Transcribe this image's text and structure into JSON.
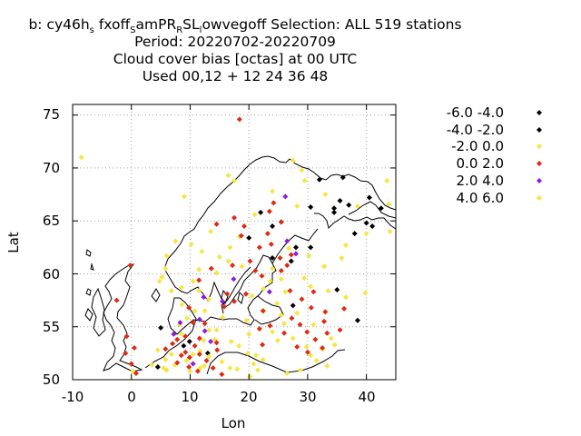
{
  "colors": {
    "black_class": "#000000",
    "yellow_class": "#f5e642",
    "red_class": "#e02a10",
    "purple_class": "#8a1ee0",
    "coastline": "#000000",
    "grid": "#a0a0a0"
  },
  "chart_data": {
    "type": "scatter",
    "title_lines": {
      "line1": {
        "prefix": "b: cy46h",
        "sub1": "s",
        "mid1": " fxoff",
        "sub2": "S",
        "mid2": "amPR",
        "sub3": "R",
        "mid3": "SL",
        "sub4": "l",
        "suffix": "owvegoff   Selection: ALL    519 stations"
      },
      "line2": "Period: 20220702-20220709",
      "line3": "Cloud cover bias [octas] at  00 UTC",
      "line4": "Used  00,12  + 12 24 36 48"
    },
    "xlabel": "Lon",
    "ylabel": "Lat",
    "xlim": [
      -10,
      45
    ],
    "ylim": [
      50,
      76
    ],
    "xticks": [
      "-10",
      "0",
      "10",
      "20",
      "30",
      "40"
    ],
    "yticks": [
      "50",
      "55",
      "60",
      "65",
      "70",
      "75"
    ],
    "grid": true,
    "legend_position": "right, outside",
    "legend": [
      {
        "label": "-6.0 -4.0",
        "color": "#000000"
      },
      {
        "label": "-4.0 -2.0",
        "color": "#000000"
      },
      {
        "label": "-2.0 0.0",
        "color": "#f5e642"
      },
      {
        "label": "0.0 2.0",
        "color": "#e02a10"
      },
      {
        "label": "2.0 4.0",
        "color": "#8a1ee0"
      },
      {
        "label": "4.0 6.0",
        "color": "#f5e642"
      }
    ],
    "series": [
      {
        "color": "#000000",
        "points": [
          [
            34.5,
            65.8
          ],
          [
            37,
            66.5
          ],
          [
            40,
            64.8
          ],
          [
            41,
            64.5
          ],
          [
            38,
            63.8
          ],
          [
            40.5,
            67.2
          ],
          [
            42.5,
            66.2
          ],
          [
            34.5,
            66.2
          ],
          [
            35.5,
            66.9
          ],
          [
            30.5,
            66.3
          ],
          [
            32,
            68.9
          ],
          [
            36,
            69.1
          ],
          [
            22,
            65.8
          ],
          [
            20,
            63.4
          ],
          [
            24,
            64.5
          ],
          [
            25.5,
            64.9
          ],
          [
            28,
            62.5
          ],
          [
            27.2,
            61.2
          ],
          [
            24,
            61.5
          ],
          [
            30.5,
            62.5
          ],
          [
            35,
            58.5
          ],
          [
            38.5,
            55.6
          ],
          [
            27.5,
            57
          ],
          [
            5,
            54.9
          ],
          [
            9.9,
            53.6
          ],
          [
            8.9,
            53.2
          ],
          [
            4.5,
            51.2
          ],
          [
            13,
            52.5
          ]
        ]
      },
      {
        "color": "#f5e642",
        "points": [
          [
            -8.5,
            71
          ],
          [
            18.4,
            63.5
          ],
          [
            21,
            65.6
          ],
          [
            27.5,
            70.7
          ],
          [
            29,
            69.8
          ],
          [
            24,
            67.8
          ],
          [
            29.5,
            68.8
          ],
          [
            16.5,
            69.3
          ],
          [
            28.2,
            66.4
          ],
          [
            26.8,
            62.4
          ],
          [
            30.2,
            61.7
          ],
          [
            24,
            60.5
          ],
          [
            25.5,
            59.5
          ],
          [
            22.5,
            58.6
          ],
          [
            24.8,
            57.2
          ],
          [
            20.5,
            57.9
          ],
          [
            13.2,
            57.6
          ],
          [
            14.5,
            60.1
          ],
          [
            11.5,
            58.4
          ],
          [
            16.5,
            61.2
          ],
          [
            16.8,
            62.5
          ],
          [
            13.5,
            64
          ],
          [
            15,
            61.6
          ],
          [
            12,
            62.1
          ],
          [
            10.2,
            62.8
          ],
          [
            17.5,
            68.8
          ],
          [
            9,
            67.3
          ],
          [
            7.5,
            63.1
          ],
          [
            6,
            61.7
          ],
          [
            5.8,
            60.5
          ],
          [
            5.2,
            59.7
          ],
          [
            6.8,
            58.4
          ],
          [
            8.5,
            58.7
          ],
          [
            10.5,
            59.3
          ],
          [
            11.5,
            60.4
          ],
          [
            4.8,
            59.3
          ],
          [
            12.5,
            56.5
          ],
          [
            10.8,
            56.5
          ],
          [
            8.6,
            57.1
          ],
          [
            9.5,
            55.8
          ],
          [
            8.2,
            55.2
          ],
          [
            15.5,
            55.9
          ],
          [
            13.2,
            54.7
          ],
          [
            14.5,
            54.7
          ],
          [
            17,
            53.6
          ],
          [
            18.3,
            53.2
          ],
          [
            19.8,
            52.5
          ],
          [
            20.8,
            51.5
          ],
          [
            21.5,
            50.9
          ],
          [
            21.2,
            52.3
          ],
          [
            12.4,
            51.3
          ],
          [
            13.2,
            52.2
          ],
          [
            11.7,
            52.7
          ],
          [
            10,
            50.8
          ],
          [
            9.4,
            51.8
          ],
          [
            7.4,
            51.4
          ],
          [
            6.8,
            52.4
          ],
          [
            5.8,
            51.9
          ],
          [
            4.5,
            52.8
          ],
          [
            3.5,
            51.4
          ],
          [
            6,
            50.9
          ],
          [
            10.5,
            52.4
          ],
          [
            12.3,
            53.7
          ],
          [
            14.2,
            53.8
          ],
          [
            8.5,
            54.3
          ],
          [
            11.7,
            51.1
          ],
          [
            25.5,
            56.1
          ],
          [
            24,
            54.5
          ],
          [
            22.5,
            56.5
          ],
          [
            26,
            55.3
          ],
          [
            27.5,
            53.9
          ],
          [
            30.5,
            52.3
          ],
          [
            29.8,
            53.1
          ],
          [
            31.5,
            51.8
          ],
          [
            33.3,
            51.3
          ],
          [
            32.5,
            52.9
          ],
          [
            34.6,
            53.3
          ],
          [
            36.5,
            57.8
          ],
          [
            39.8,
            58.2
          ],
          [
            33.5,
            58.4
          ],
          [
            32.8,
            60.7
          ],
          [
            35.8,
            61.5
          ],
          [
            36.5,
            62.7
          ],
          [
            40,
            63.8
          ],
          [
            38.5,
            66.4
          ],
          [
            33,
            67.5
          ],
          [
            43.5,
            68.8
          ],
          [
            44,
            64
          ],
          [
            43.8,
            66.6
          ],
          [
            29.4,
            59.6
          ],
          [
            28.2,
            56.3
          ],
          [
            26.2,
            58.3
          ],
          [
            30.5,
            58.8
          ],
          [
            34,
            53.9
          ],
          [
            18,
            51
          ],
          [
            15.4,
            51.7
          ],
          [
            20.2,
            50.3
          ],
          [
            16.8,
            51.1
          ],
          [
            26.5,
            50.6
          ],
          [
            28.7,
            50.9
          ],
          [
            20,
            54.3
          ],
          [
            0.2,
            50.8
          ],
          [
            5.5,
            51.1
          ],
          [
            22.4,
            51.9
          ],
          [
            24.9,
            53.7
          ],
          [
            31,
            55.2
          ],
          [
            23.6,
            59.3
          ],
          [
            19.6,
            55.6
          ],
          [
            18.8,
            60.7
          ]
        ]
      },
      {
        "color": "#e02a10",
        "points": [
          [
            18.4,
            74.6
          ],
          [
            23.5,
            65.9
          ],
          [
            25.5,
            64.9
          ],
          [
            24.2,
            66.7
          ],
          [
            17.5,
            65.3
          ],
          [
            19.2,
            64.5
          ],
          [
            14.5,
            64.7
          ],
          [
            23.8,
            62.8
          ],
          [
            21.8,
            62.5
          ],
          [
            26.5,
            60.8
          ],
          [
            25.3,
            61.5
          ],
          [
            23.2,
            63.8
          ],
          [
            20.2,
            61.2
          ],
          [
            22.2,
            59.8
          ],
          [
            25.5,
            60.3
          ],
          [
            27,
            58.4
          ],
          [
            29,
            57.6
          ],
          [
            31,
            58.3
          ],
          [
            30.6,
            56.8
          ],
          [
            28.7,
            55.2
          ],
          [
            27.3,
            55.8
          ],
          [
            23.6,
            55.1
          ],
          [
            22.4,
            56.5
          ],
          [
            26,
            54.4
          ],
          [
            28.2,
            53.1
          ],
          [
            31.3,
            53.8
          ],
          [
            29.9,
            54.5
          ],
          [
            32.8,
            55.5
          ],
          [
            33,
            56.4
          ],
          [
            30,
            52.6
          ],
          [
            13.6,
            60.5
          ],
          [
            11.5,
            59.4
          ],
          [
            15.8,
            56.9
          ],
          [
            16.3,
            58.1
          ],
          [
            17.2,
            60.8
          ],
          [
            9.8,
            56.8
          ],
          [
            10.5,
            55.4
          ],
          [
            12.5,
            55.3
          ],
          [
            7.8,
            53.8
          ],
          [
            10.8,
            53.2
          ],
          [
            11.6,
            53.9
          ],
          [
            14.6,
            52.8
          ],
          [
            8.5,
            52.3
          ],
          [
            9.2,
            52.6
          ],
          [
            9.9,
            52.1
          ],
          [
            11.6,
            52.4
          ],
          [
            7,
            53.4
          ],
          [
            12.8,
            51.8
          ],
          [
            13.9,
            51.1
          ],
          [
            11.3,
            50.8
          ],
          [
            9.8,
            51.2
          ],
          [
            7.8,
            51.6
          ],
          [
            5.8,
            52.9
          ],
          [
            0,
            51.5
          ],
          [
            -1,
            52.5
          ],
          [
            0.5,
            53
          ],
          [
            0.8,
            50.6
          ],
          [
            -0.8,
            54.1
          ],
          [
            -2.5,
            57.5
          ],
          [
            -0.2,
            60.8
          ],
          [
            19.5,
            58.1
          ],
          [
            21.8,
            54.8
          ],
          [
            22.3,
            53.3
          ],
          [
            33.3,
            54.4
          ],
          [
            35.5,
            54.7
          ],
          [
            36.2,
            56.7
          ],
          [
            32.5,
            53
          ],
          [
            17.5,
            57.4
          ],
          [
            18.7,
            63.6
          ],
          [
            14.5,
            53.5
          ],
          [
            21.1,
            60.3
          ],
          [
            27.2,
            61.8
          ],
          [
            15.4,
            50.5
          ],
          [
            9.2,
            54.1
          ]
        ]
      },
      {
        "color": "#8a1ee0",
        "points": [
          [
            26.2,
            67.3
          ],
          [
            26.5,
            63.1
          ],
          [
            23.5,
            58.3
          ],
          [
            17.4,
            59.5
          ],
          [
            15.5,
            57.4
          ],
          [
            12.3,
            57.8
          ],
          [
            11.6,
            55.7
          ],
          [
            12.5,
            54.6
          ],
          [
            8.3,
            55.4
          ],
          [
            7.2,
            54.3
          ],
          [
            13.5,
            53.6
          ],
          [
            10.5,
            51.5
          ],
          [
            28,
            61.9
          ]
        ]
      }
    ]
  }
}
